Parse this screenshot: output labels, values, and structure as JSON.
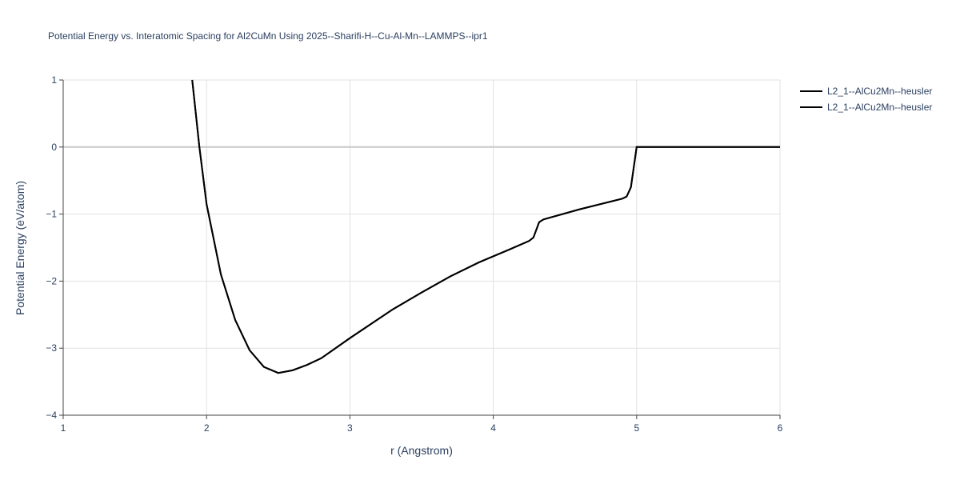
{
  "chart_data": {
    "type": "line",
    "title": "Potential Energy vs. Interatomic Spacing for Al2CuMn Using 2025--Sharifi-H--Cu-Al-Mn--LAMMPS--ipr1",
    "x_label": "r (Angstrom)",
    "y_label": "Potential Energy (eV/atom)",
    "x": [
      1.9,
      1.95,
      2.0,
      2.1,
      2.2,
      2.3,
      2.4,
      2.5,
      2.6,
      2.7,
      2.8,
      3.0,
      3.3,
      3.5,
      3.7,
      3.9,
      4.1,
      4.25,
      4.28,
      4.32,
      4.35,
      4.6,
      4.9,
      4.93,
      4.96,
      5.0,
      6.0
    ],
    "series": [
      {
        "name": "L2_1--AlCu2Mn--heusler",
        "color": "#000000",
        "values": [
          1.0,
          0.0,
          -0.85,
          -1.9,
          -2.58,
          -3.03,
          -3.28,
          -3.37,
          -3.33,
          -3.25,
          -3.15,
          -2.85,
          -2.42,
          -2.17,
          -1.93,
          -1.72,
          -1.54,
          -1.4,
          -1.35,
          -1.12,
          -1.08,
          -0.93,
          -0.77,
          -0.74,
          -0.6,
          0.0,
          0.0
        ]
      },
      {
        "name": "L2_1--AlCu2Mn--heusler",
        "color": "#000000",
        "values": [
          1.0,
          0.0,
          -0.85,
          -1.9,
          -2.58,
          -3.03,
          -3.28,
          -3.37,
          -3.33,
          -3.25,
          -3.15,
          -2.85,
          -2.42,
          -2.17,
          -1.93,
          -1.72,
          -1.54,
          -1.4,
          -1.35,
          -1.12,
          -1.08,
          -0.93,
          -0.77,
          -0.74,
          -0.6,
          0.0,
          0.0
        ]
      }
    ],
    "xlim": [
      1,
      6
    ],
    "xticks": [
      1,
      2,
      3,
      4,
      5,
      6
    ],
    "ylim": [
      -4,
      1
    ],
    "yticks": [
      {
        "value": -4,
        "label": "−4"
      },
      {
        "value": -3,
        "label": "−3"
      },
      {
        "value": -2,
        "label": "−2"
      },
      {
        "value": -1,
        "label": "−1"
      },
      0,
      1
    ],
    "grid": true
  }
}
